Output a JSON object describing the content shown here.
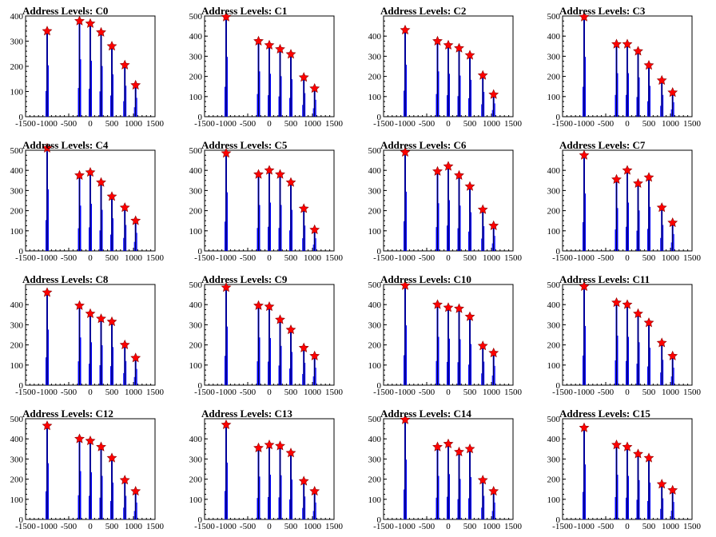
{
  "chart_data": [
    {
      "type": "bar",
      "title": "Address Levels: C0",
      "xlim": [
        -1500,
        1500
      ],
      "ylim": [
        0,
        400
      ],
      "yticks": [
        0,
        100,
        200,
        300,
        400
      ],
      "xticks": [
        -1500,
        -1000,
        -500,
        0,
        500,
        1000,
        1500
      ],
      "x": [
        -1000,
        -250,
        0,
        250,
        500,
        800,
        1050
      ],
      "values": [
        340,
        380,
        370,
        335,
        280,
        205,
        125
      ]
    },
    {
      "type": "bar",
      "title": "Address Levels: C1",
      "xlim": [
        -1500,
        1500
      ],
      "ylim": [
        0,
        500
      ],
      "yticks": [
        0,
        100,
        200,
        300,
        400,
        500
      ],
      "xticks": [
        -1500,
        -1000,
        -500,
        0,
        500,
        1000,
        1500
      ],
      "x": [
        -1000,
        -250,
        0,
        250,
        500,
        800,
        1050
      ],
      "values": [
        495,
        375,
        355,
        335,
        310,
        195,
        140
      ]
    },
    {
      "type": "bar",
      "title": "Address Levels: C2",
      "xlim": [
        -1500,
        1500
      ],
      "ylim": [
        0,
        500
      ],
      "yticks": [
        0,
        100,
        200,
        300,
        400
      ],
      "xticks": [
        -1500,
        -1000,
        -500,
        0,
        500,
        1000,
        1500
      ],
      "x": [
        -1000,
        -250,
        0,
        250,
        500,
        800,
        1050
      ],
      "values": [
        430,
        375,
        355,
        340,
        305,
        205,
        110
      ]
    },
    {
      "type": "bar",
      "title": "Address Levels: C3",
      "xlim": [
        -1500,
        1500
      ],
      "ylim": [
        0,
        500
      ],
      "yticks": [
        0,
        100,
        200,
        300,
        400,
        500
      ],
      "xticks": [
        -1500,
        -1000,
        -500,
        0,
        500,
        1000,
        1500
      ],
      "x": [
        -1000,
        -250,
        0,
        250,
        500,
        800,
        1050
      ],
      "values": [
        495,
        360,
        360,
        325,
        255,
        180,
        120
      ]
    },
    {
      "type": "bar",
      "title": "Address Levels: C4",
      "xlim": [
        -1500,
        1500
      ],
      "ylim": [
        0,
        500
      ],
      "yticks": [
        0,
        100,
        200,
        300,
        400,
        500
      ],
      "xticks": [
        -1500,
        -1000,
        -500,
        0,
        500,
        1000,
        1500
      ],
      "x": [
        -1000,
        -250,
        0,
        250,
        500,
        800,
        1050
      ],
      "values": [
        510,
        375,
        390,
        340,
        270,
        215,
        150
      ]
    },
    {
      "type": "bar",
      "title": "Address Levels: C5",
      "xlim": [
        -1500,
        1500
      ],
      "ylim": [
        0,
        500
      ],
      "yticks": [
        0,
        100,
        200,
        300,
        400,
        500
      ],
      "xticks": [
        -1500,
        -1000,
        -500,
        0,
        500,
        1000,
        1500
      ],
      "x": [
        -1000,
        -250,
        0,
        250,
        500,
        800,
        1050
      ],
      "values": [
        485,
        380,
        400,
        380,
        340,
        210,
        105
      ]
    },
    {
      "type": "bar",
      "title": "Address Levels: C6",
      "xlim": [
        -1500,
        1500
      ],
      "ylim": [
        0,
        500
      ],
      "yticks": [
        0,
        100,
        200,
        300,
        400,
        500
      ],
      "xticks": [
        -1500,
        -1000,
        -500,
        0,
        500,
        1000,
        1500
      ],
      "x": [
        -1000,
        -250,
        0,
        250,
        500,
        800,
        1050
      ],
      "values": [
        490,
        395,
        420,
        375,
        320,
        205,
        125
      ]
    },
    {
      "type": "bar",
      "title": "Address Levels: C7",
      "xlim": [
        -1500,
        1500
      ],
      "ylim": [
        0,
        500
      ],
      "yticks": [
        0,
        100,
        200,
        300,
        400
      ],
      "xticks": [
        -1500,
        -1000,
        -500,
        0,
        500,
        1000,
        1500
      ],
      "x": [
        -1000,
        -250,
        0,
        250,
        500,
        800,
        1050
      ],
      "values": [
        475,
        355,
        400,
        335,
        365,
        215,
        140
      ]
    },
    {
      "type": "bar",
      "title": "Address Levels: C8",
      "xlim": [
        -1500,
        1500
      ],
      "ylim": [
        0,
        500
      ],
      "yticks": [
        0,
        100,
        200,
        300,
        400
      ],
      "xticks": [
        -1500,
        -1000,
        -500,
        0,
        500,
        1000,
        1500
      ],
      "x": [
        -1000,
        -250,
        0,
        250,
        500,
        800,
        1050
      ],
      "values": [
        460,
        395,
        355,
        330,
        315,
        200,
        135
      ]
    },
    {
      "type": "bar",
      "title": "Address Levels: C9",
      "xlim": [
        -1500,
        1500
      ],
      "ylim": [
        0,
        500
      ],
      "yticks": [
        0,
        100,
        200,
        300,
        400,
        500
      ],
      "xticks": [
        -1500,
        -1000,
        -500,
        0,
        500,
        1000,
        1500
      ],
      "x": [
        -1000,
        -250,
        0,
        250,
        500,
        800,
        1050
      ],
      "values": [
        485,
        395,
        390,
        325,
        275,
        185,
        145
      ]
    },
    {
      "type": "bar",
      "title": "Address Levels: C10",
      "xlim": [
        -1500,
        1500
      ],
      "ylim": [
        0,
        500
      ],
      "yticks": [
        0,
        100,
        200,
        300,
        400,
        500
      ],
      "xticks": [
        -1500,
        -1000,
        -500,
        0,
        500,
        1000,
        1500
      ],
      "x": [
        -1000,
        -250,
        0,
        250,
        500,
        800,
        1050
      ],
      "values": [
        495,
        400,
        385,
        380,
        340,
        195,
        160
      ]
    },
    {
      "type": "bar",
      "title": "Address Levels: C11",
      "xlim": [
        -1500,
        1500
      ],
      "ylim": [
        0,
        500
      ],
      "yticks": [
        0,
        100,
        200,
        300,
        400,
        500
      ],
      "xticks": [
        -1500,
        -1000,
        -500,
        0,
        500,
        1000,
        1500
      ],
      "x": [
        -1000,
        -250,
        0,
        250,
        500,
        800,
        1050
      ],
      "values": [
        490,
        410,
        400,
        355,
        310,
        210,
        145
      ]
    },
    {
      "type": "bar",
      "title": "Address Levels: C12",
      "xlim": [
        -1500,
        1500
      ],
      "ylim": [
        0,
        500
      ],
      "yticks": [
        0,
        100,
        200,
        300,
        400,
        500
      ],
      "xticks": [
        -1500,
        -1000,
        -500,
        0,
        500,
        1000,
        1500
      ],
      "x": [
        -1000,
        -250,
        0,
        250,
        500,
        800,
        1050
      ],
      "values": [
        465,
        400,
        390,
        360,
        305,
        195,
        140
      ]
    },
    {
      "type": "bar",
      "title": "Address Levels: C13",
      "xlim": [
        -1500,
        1500
      ],
      "ylim": [
        0,
        500
      ],
      "yticks": [
        0,
        100,
        200,
        300,
        400
      ],
      "xticks": [
        -1500,
        -1000,
        -500,
        0,
        500,
        1000,
        1500
      ],
      "x": [
        -1000,
        -250,
        0,
        250,
        500,
        800,
        1050
      ],
      "values": [
        470,
        355,
        370,
        365,
        330,
        190,
        140
      ]
    },
    {
      "type": "bar",
      "title": "Address Levels: C14",
      "xlim": [
        -1500,
        1500
      ],
      "ylim": [
        0,
        500
      ],
      "yticks": [
        0,
        100,
        200,
        300,
        400,
        500
      ],
      "xticks": [
        -1500,
        -1000,
        -500,
        0,
        500,
        1000,
        1500
      ],
      "x": [
        -1000,
        -250,
        0,
        250,
        500,
        800,
        1050
      ],
      "values": [
        495,
        360,
        375,
        335,
        350,
        195,
        140
      ]
    },
    {
      "type": "bar",
      "title": "Address Levels: C15",
      "xlim": [
        -1500,
        1500
      ],
      "ylim": [
        0,
        500
      ],
      "yticks": [
        0,
        100,
        200,
        300,
        400,
        500
      ],
      "xticks": [
        -1500,
        -1000,
        -500,
        0,
        500,
        1000,
        1500
      ],
      "x": [
        -1000,
        -250,
        0,
        250,
        500,
        800,
        1050
      ],
      "values": [
        455,
        370,
        360,
        325,
        305,
        175,
        145
      ]
    }
  ],
  "colors": {
    "bar": "#0000ff",
    "spike": "#000000",
    "marker_fill": "#ff0000",
    "marker_stroke": "#8b0000",
    "axis": "#000000"
  }
}
